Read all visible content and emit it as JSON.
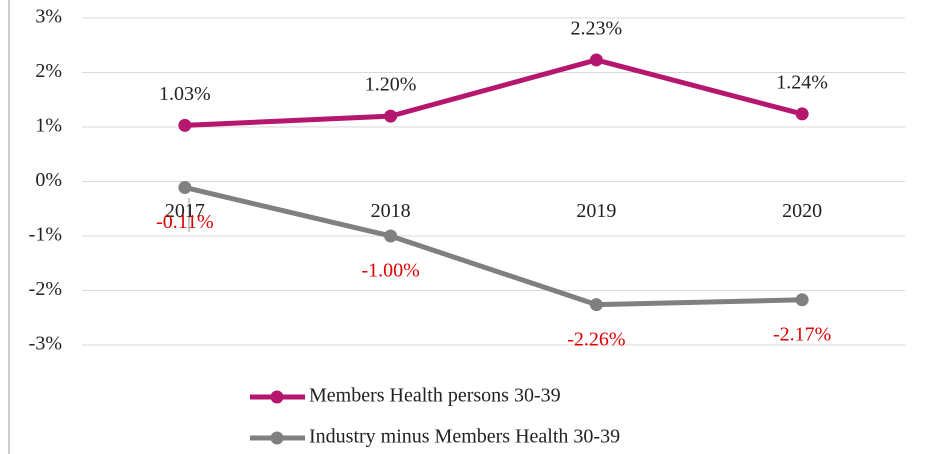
{
  "chart_data": {
    "type": "line",
    "categories": [
      "2017",
      "2018",
      "2019",
      "2020"
    ],
    "series": [
      {
        "name": "Members Health persons 30-39",
        "color": "#b5176e",
        "label_color": "#222222",
        "values": [
          1.03,
          1.2,
          2.23,
          1.24
        ],
        "value_labels": [
          "1.03%",
          "1.20%",
          "2.23%",
          "1.24%"
        ],
        "label_position": "above"
      },
      {
        "name": "Industry minus Members Health 30-39",
        "color": "#808080",
        "label_color": "#e00000",
        "values": [
          -0.11,
          -1.0,
          -2.26,
          -2.17
        ],
        "value_labels": [
          "-0.11%",
          "-1.00%",
          "-2.26%",
          "-2.17%"
        ],
        "label_position": "below"
      }
    ],
    "ylim": [
      -3,
      3
    ],
    "yticks": [
      {
        "value": -3,
        "label": "-3%"
      },
      {
        "value": -2,
        "label": "-2%"
      },
      {
        "value": -1,
        "label": "-1%"
      },
      {
        "value": 0,
        "label": "0%"
      },
      {
        "value": 1,
        "label": "1%"
      },
      {
        "value": 2,
        "label": "2%"
      },
      {
        "value": 3,
        "label": "3%"
      }
    ],
    "grid": true,
    "legend": "bottom"
  }
}
